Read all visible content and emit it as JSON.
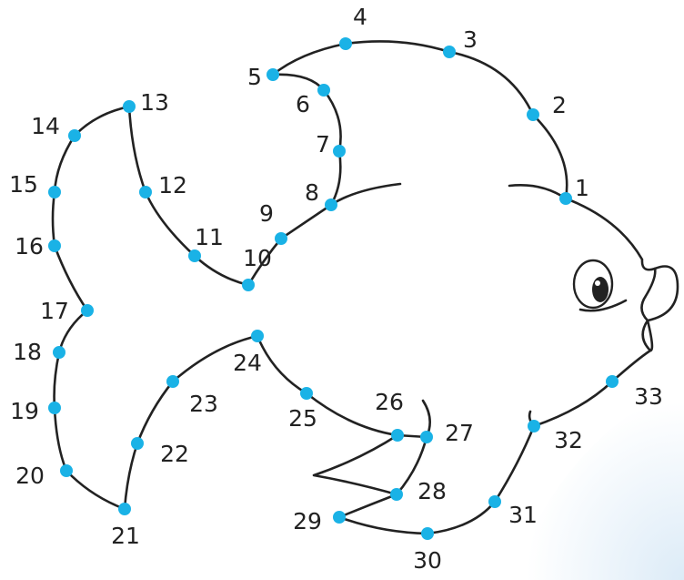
{
  "nodes": [
    {
      "label": "1"
    },
    {
      "label": "2"
    },
    {
      "label": "3"
    },
    {
      "label": "4"
    },
    {
      "label": "5"
    },
    {
      "label": "6"
    },
    {
      "label": "7"
    },
    {
      "label": "8"
    },
    {
      "label": "9"
    },
    {
      "label": "10"
    },
    {
      "label": "11"
    },
    {
      "label": "12"
    },
    {
      "label": "13"
    },
    {
      "label": "14"
    },
    {
      "label": "15"
    },
    {
      "label": "16"
    },
    {
      "label": "17"
    },
    {
      "label": "18"
    },
    {
      "label": "19"
    },
    {
      "label": "20"
    },
    {
      "label": "21"
    },
    {
      "label": "22"
    },
    {
      "label": "23"
    },
    {
      "label": "24"
    },
    {
      "label": "25"
    },
    {
      "label": "26"
    },
    {
      "label": "27"
    },
    {
      "label": "28"
    },
    {
      "label": "29"
    },
    {
      "label": "30"
    },
    {
      "label": "31"
    },
    {
      "label": "32"
    },
    {
      "label": "33"
    }
  ]
}
